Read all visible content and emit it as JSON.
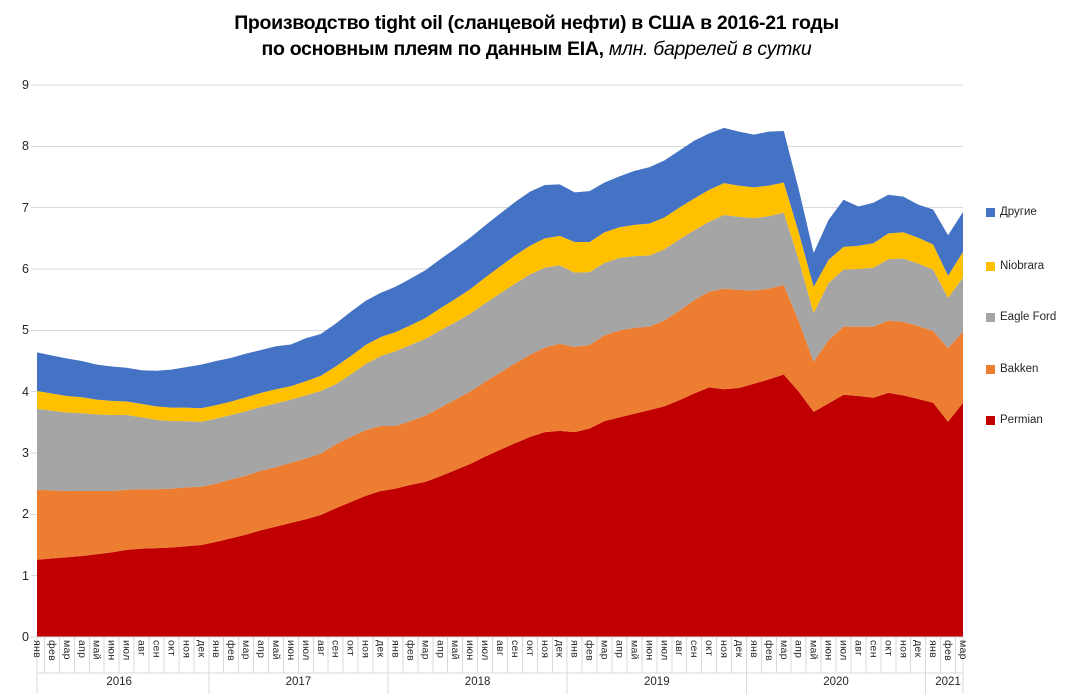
{
  "title": {
    "line1": "Производство tight oil (сланцевой нефти) в США в 2016-21 годы",
    "line2_prefix": "по основным плеям по данным EIA, ",
    "line2_italic": "млн. баррелей в сутки"
  },
  "legend": {
    "position": "right",
    "items": [
      {
        "label": "Другие",
        "color": "#4472C4"
      },
      {
        "label": "Niobrara",
        "color": "#FFC000"
      },
      {
        "label": "Eagle Ford",
        "color": "#A5A5A5"
      },
      {
        "label": "Bakken",
        "color": "#ED7D31"
      },
      {
        "label": "Permian",
        "color": "#C00000"
      }
    ]
  },
  "axes": {
    "y_ticks": [
      "0",
      "1",
      "2",
      "3",
      "4",
      "5",
      "6",
      "7",
      "8",
      "9"
    ],
    "month_names": [
      "янв",
      "фев",
      "мар",
      "апр",
      "май",
      "июн",
      "июл",
      "авг",
      "сен",
      "окт",
      "ноя",
      "дек"
    ],
    "year_groups": [
      {
        "label": "2016",
        "months": 12
      },
      {
        "label": "2017",
        "months": 12
      },
      {
        "label": "2018",
        "months": 12
      },
      {
        "label": "2019",
        "months": 12
      },
      {
        "label": "2020",
        "months": 12
      },
      {
        "label": "2021",
        "months": 3
      }
    ]
  },
  "styles": {
    "grid_color": "#D9D9D9",
    "axis_text_color": "#262626",
    "background": "#FFFFFF"
  },
  "chart_data": {
    "type": "area",
    "stacked": true,
    "title": "Производство tight oil (сланцевой нефти) в США в 2016-21 годы по основным плеям по данным EIA",
    "ylabel": "млн. баррелей в сутки",
    "xlabel": "",
    "x_start": "2016-01",
    "x_end": "2021-03",
    "ylim": [
      0,
      9
    ],
    "grid": true,
    "legend_position": "right",
    "series": [
      {
        "name": "Permian",
        "color": "#C00000",
        "values": [
          1.26,
          1.28,
          1.3,
          1.32,
          1.35,
          1.38,
          1.42,
          1.44,
          1.45,
          1.46,
          1.48,
          1.5,
          1.55,
          1.61,
          1.67,
          1.74,
          1.8,
          1.86,
          1.92,
          1.99,
          2.1,
          2.2,
          2.3,
          2.38,
          2.42,
          2.48,
          2.53,
          2.62,
          2.72,
          2.82,
          2.94,
          3.05,
          3.16,
          3.26,
          3.34,
          3.36,
          3.34,
          3.4,
          3.52,
          3.58,
          3.64,
          3.7,
          3.76,
          3.86,
          3.97,
          4.07,
          4.04,
          4.06,
          4.13,
          4.2,
          4.28,
          4.0,
          3.67,
          3.81,
          3.95,
          3.93,
          3.9,
          3.98,
          3.94,
          3.88,
          3.82,
          3.51,
          3.82
        ]
      },
      {
        "name": "Bakken",
        "color": "#ED7D31",
        "values": [
          1.14,
          1.11,
          1.08,
          1.06,
          1.03,
          1.0,
          0.98,
          0.97,
          0.96,
          0.96,
          0.96,
          0.95,
          0.95,
          0.96,
          0.96,
          0.97,
          0.97,
          0.98,
          0.99,
          1.0,
          1.04,
          1.06,
          1.07,
          1.06,
          1.02,
          1.04,
          1.08,
          1.12,
          1.15,
          1.18,
          1.22,
          1.26,
          1.3,
          1.34,
          1.38,
          1.42,
          1.39,
          1.36,
          1.4,
          1.42,
          1.4,
          1.36,
          1.4,
          1.46,
          1.52,
          1.56,
          1.64,
          1.6,
          1.52,
          1.48,
          1.46,
          1.15,
          0.82,
          1.03,
          1.11,
          1.13,
          1.16,
          1.18,
          1.2,
          1.19,
          1.17,
          1.2,
          1.16
        ]
      },
      {
        "name": "Eagle Ford",
        "color": "#A5A5A5",
        "values": [
          1.32,
          1.3,
          1.28,
          1.27,
          1.25,
          1.24,
          1.22,
          1.17,
          1.13,
          1.1,
          1.08,
          1.06,
          1.06,
          1.05,
          1.05,
          1.04,
          1.04,
          1.03,
          1.03,
          1.02,
          0.98,
          1.02,
          1.08,
          1.14,
          1.22,
          1.24,
          1.25,
          1.26,
          1.26,
          1.27,
          1.28,
          1.29,
          1.3,
          1.31,
          1.3,
          1.28,
          1.21,
          1.19,
          1.18,
          1.18,
          1.17,
          1.16,
          1.16,
          1.16,
          1.14,
          1.14,
          1.2,
          1.19,
          1.18,
          1.18,
          1.18,
          1.0,
          0.79,
          0.93,
          0.93,
          0.94,
          0.96,
          1.0,
          1.03,
          1.02,
          1.0,
          0.82,
          0.88
        ]
      },
      {
        "name": "Niobrara",
        "color": "#FFC000",
        "values": [
          0.29,
          0.28,
          0.27,
          0.26,
          0.24,
          0.23,
          0.22,
          0.22,
          0.22,
          0.22,
          0.22,
          0.22,
          0.22,
          0.22,
          0.23,
          0.23,
          0.23,
          0.22,
          0.23,
          0.25,
          0.29,
          0.3,
          0.31,
          0.31,
          0.31,
          0.32,
          0.34,
          0.36,
          0.38,
          0.4,
          0.42,
          0.44,
          0.46,
          0.47,
          0.48,
          0.48,
          0.5,
          0.49,
          0.5,
          0.5,
          0.51,
          0.52,
          0.52,
          0.52,
          0.52,
          0.52,
          0.52,
          0.51,
          0.5,
          0.5,
          0.49,
          0.45,
          0.43,
          0.38,
          0.37,
          0.38,
          0.4,
          0.42,
          0.43,
          0.42,
          0.41,
          0.36,
          0.42
        ]
      },
      {
        "name": "Другие",
        "color": "#4472C4",
        "values": [
          0.63,
          0.62,
          0.61,
          0.59,
          0.57,
          0.56,
          0.55,
          0.55,
          0.58,
          0.62,
          0.66,
          0.71,
          0.72,
          0.71,
          0.71,
          0.7,
          0.7,
          0.68,
          0.7,
          0.68,
          0.7,
          0.72,
          0.72,
          0.72,
          0.74,
          0.76,
          0.78,
          0.8,
          0.82,
          0.84,
          0.85,
          0.86,
          0.87,
          0.88,
          0.87,
          0.84,
          0.81,
          0.83,
          0.81,
          0.83,
          0.88,
          0.92,
          0.93,
          0.93,
          0.94,
          0.92,
          0.9,
          0.88,
          0.86,
          0.88,
          0.84,
          0.7,
          0.55,
          0.65,
          0.77,
          0.64,
          0.66,
          0.63,
          0.58,
          0.54,
          0.57,
          0.66,
          0.65
        ]
      }
    ]
  }
}
